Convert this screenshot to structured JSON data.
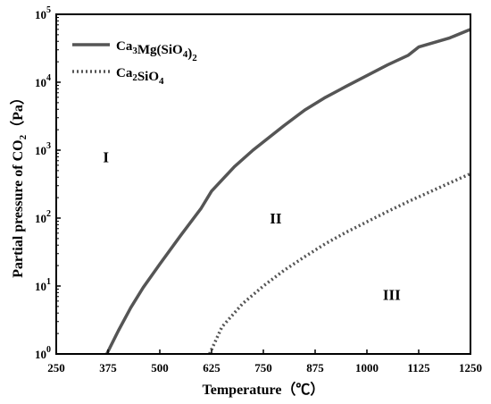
{
  "chart_data": {
    "type": "line",
    "xlabel": "Temperature（℃）",
    "ylabel": "Partial pressure of CO",
    "ylabel_sub": "2",
    "ylabel_unit": "（Pa）",
    "xlim": [
      250,
      1250
    ],
    "ylim": [
      1,
      100000
    ],
    "y_scale": "log",
    "grid": false,
    "legend_position": "top-left",
    "x_ticks": [
      "250",
      "375",
      "500",
      "625",
      "750",
      "875",
      "1000",
      "1125",
      "1250"
    ],
    "x_tick_values": [
      250,
      375,
      500,
      625,
      750,
      875,
      1000,
      1125,
      1250
    ],
    "y_tick_exponents": [
      "0",
      "1",
      "2",
      "3",
      "4",
      "5"
    ],
    "y_tick_base": "10",
    "series": [
      {
        "name": "Ca3Mg(SiO4)2",
        "legend_parts": [
          [
            "Ca",
            ""
          ],
          [
            "3",
            "sub"
          ],
          [
            "Mg(SiO",
            ""
          ],
          [
            "4",
            "sub"
          ],
          [
            ")",
            ""
          ],
          [
            "2",
            "sub"
          ]
        ],
        "style": "solid",
        "color": "#555555",
        "x": [
          372,
          400,
          430,
          460,
          500,
          550,
          600,
          625,
          680,
          725,
          800,
          850,
          900,
          950,
          1000,
          1050,
          1100,
          1125,
          1200,
          1250
        ],
        "y": [
          1,
          2.2,
          4.8,
          9.5,
          21,
          55,
          140,
          250,
          570,
          1000,
          2300,
          3900,
          6000,
          8700,
          12500,
          18000,
          25000,
          33000,
          45000,
          60000
        ]
      },
      {
        "name": "Ca2SiO4",
        "legend_parts": [
          [
            "Ca",
            ""
          ],
          [
            "2",
            "sub"
          ],
          [
            "SiO",
            ""
          ],
          [
            "4",
            "sub"
          ]
        ],
        "style": "dotted",
        "color": "#555555",
        "x": [
          620,
          650,
          700,
          750,
          800,
          850,
          900,
          950,
          1000,
          1050,
          1100,
          1150,
          1200,
          1250
        ],
        "y": [
          1,
          2.5,
          5.5,
          10,
          17,
          27,
          42,
          62,
          88,
          125,
          175,
          240,
          330,
          450
        ]
      }
    ],
    "annotations": [
      {
        "text": "I",
        "x": 370,
        "y": 800
      },
      {
        "text": "II",
        "x": 780,
        "y": 100
      },
      {
        "text": "III",
        "x": 1060,
        "y": 7.5
      }
    ]
  }
}
